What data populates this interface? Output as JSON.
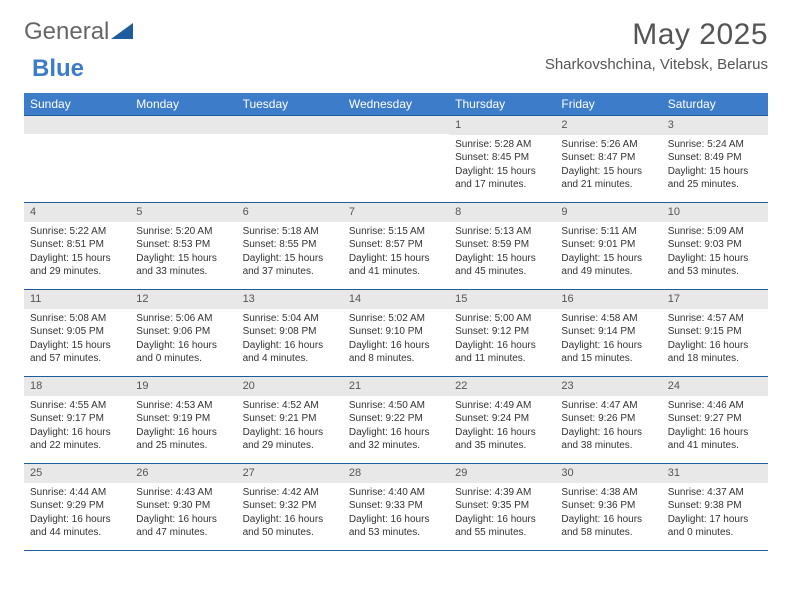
{
  "logo": {
    "text1": "General",
    "text2": "Blue"
  },
  "title": "May 2025",
  "location": "Sharkovshchina, Vitebsk, Belarus",
  "dow": [
    "Sunday",
    "Monday",
    "Tuesday",
    "Wednesday",
    "Thursday",
    "Friday",
    "Saturday"
  ],
  "colors": {
    "header_bg": "#3d7cc9",
    "border": "#1f5c9e",
    "daynum_bg": "#e8e8e8",
    "text": "#333333",
    "muted": "#555555",
    "page_bg": "#ffffff"
  },
  "weeks": [
    [
      {
        "n": "",
        "sr": "",
        "ss": "",
        "dl": ""
      },
      {
        "n": "",
        "sr": "",
        "ss": "",
        "dl": ""
      },
      {
        "n": "",
        "sr": "",
        "ss": "",
        "dl": ""
      },
      {
        "n": "",
        "sr": "",
        "ss": "",
        "dl": ""
      },
      {
        "n": "1",
        "sr": "Sunrise: 5:28 AM",
        "ss": "Sunset: 8:45 PM",
        "dl": "Daylight: 15 hours and 17 minutes."
      },
      {
        "n": "2",
        "sr": "Sunrise: 5:26 AM",
        "ss": "Sunset: 8:47 PM",
        "dl": "Daylight: 15 hours and 21 minutes."
      },
      {
        "n": "3",
        "sr": "Sunrise: 5:24 AM",
        "ss": "Sunset: 8:49 PM",
        "dl": "Daylight: 15 hours and 25 minutes."
      }
    ],
    [
      {
        "n": "4",
        "sr": "Sunrise: 5:22 AM",
        "ss": "Sunset: 8:51 PM",
        "dl": "Daylight: 15 hours and 29 minutes."
      },
      {
        "n": "5",
        "sr": "Sunrise: 5:20 AM",
        "ss": "Sunset: 8:53 PM",
        "dl": "Daylight: 15 hours and 33 minutes."
      },
      {
        "n": "6",
        "sr": "Sunrise: 5:18 AM",
        "ss": "Sunset: 8:55 PM",
        "dl": "Daylight: 15 hours and 37 minutes."
      },
      {
        "n": "7",
        "sr": "Sunrise: 5:15 AM",
        "ss": "Sunset: 8:57 PM",
        "dl": "Daylight: 15 hours and 41 minutes."
      },
      {
        "n": "8",
        "sr": "Sunrise: 5:13 AM",
        "ss": "Sunset: 8:59 PM",
        "dl": "Daylight: 15 hours and 45 minutes."
      },
      {
        "n": "9",
        "sr": "Sunrise: 5:11 AM",
        "ss": "Sunset: 9:01 PM",
        "dl": "Daylight: 15 hours and 49 minutes."
      },
      {
        "n": "10",
        "sr": "Sunrise: 5:09 AM",
        "ss": "Sunset: 9:03 PM",
        "dl": "Daylight: 15 hours and 53 minutes."
      }
    ],
    [
      {
        "n": "11",
        "sr": "Sunrise: 5:08 AM",
        "ss": "Sunset: 9:05 PM",
        "dl": "Daylight: 15 hours and 57 minutes."
      },
      {
        "n": "12",
        "sr": "Sunrise: 5:06 AM",
        "ss": "Sunset: 9:06 PM",
        "dl": "Daylight: 16 hours and 0 minutes."
      },
      {
        "n": "13",
        "sr": "Sunrise: 5:04 AM",
        "ss": "Sunset: 9:08 PM",
        "dl": "Daylight: 16 hours and 4 minutes."
      },
      {
        "n": "14",
        "sr": "Sunrise: 5:02 AM",
        "ss": "Sunset: 9:10 PM",
        "dl": "Daylight: 16 hours and 8 minutes."
      },
      {
        "n": "15",
        "sr": "Sunrise: 5:00 AM",
        "ss": "Sunset: 9:12 PM",
        "dl": "Daylight: 16 hours and 11 minutes."
      },
      {
        "n": "16",
        "sr": "Sunrise: 4:58 AM",
        "ss": "Sunset: 9:14 PM",
        "dl": "Daylight: 16 hours and 15 minutes."
      },
      {
        "n": "17",
        "sr": "Sunrise: 4:57 AM",
        "ss": "Sunset: 9:15 PM",
        "dl": "Daylight: 16 hours and 18 minutes."
      }
    ],
    [
      {
        "n": "18",
        "sr": "Sunrise: 4:55 AM",
        "ss": "Sunset: 9:17 PM",
        "dl": "Daylight: 16 hours and 22 minutes."
      },
      {
        "n": "19",
        "sr": "Sunrise: 4:53 AM",
        "ss": "Sunset: 9:19 PM",
        "dl": "Daylight: 16 hours and 25 minutes."
      },
      {
        "n": "20",
        "sr": "Sunrise: 4:52 AM",
        "ss": "Sunset: 9:21 PM",
        "dl": "Daylight: 16 hours and 29 minutes."
      },
      {
        "n": "21",
        "sr": "Sunrise: 4:50 AM",
        "ss": "Sunset: 9:22 PM",
        "dl": "Daylight: 16 hours and 32 minutes."
      },
      {
        "n": "22",
        "sr": "Sunrise: 4:49 AM",
        "ss": "Sunset: 9:24 PM",
        "dl": "Daylight: 16 hours and 35 minutes."
      },
      {
        "n": "23",
        "sr": "Sunrise: 4:47 AM",
        "ss": "Sunset: 9:26 PM",
        "dl": "Daylight: 16 hours and 38 minutes."
      },
      {
        "n": "24",
        "sr": "Sunrise: 4:46 AM",
        "ss": "Sunset: 9:27 PM",
        "dl": "Daylight: 16 hours and 41 minutes."
      }
    ],
    [
      {
        "n": "25",
        "sr": "Sunrise: 4:44 AM",
        "ss": "Sunset: 9:29 PM",
        "dl": "Daylight: 16 hours and 44 minutes."
      },
      {
        "n": "26",
        "sr": "Sunrise: 4:43 AM",
        "ss": "Sunset: 9:30 PM",
        "dl": "Daylight: 16 hours and 47 minutes."
      },
      {
        "n": "27",
        "sr": "Sunrise: 4:42 AM",
        "ss": "Sunset: 9:32 PM",
        "dl": "Daylight: 16 hours and 50 minutes."
      },
      {
        "n": "28",
        "sr": "Sunrise: 4:40 AM",
        "ss": "Sunset: 9:33 PM",
        "dl": "Daylight: 16 hours and 53 minutes."
      },
      {
        "n": "29",
        "sr": "Sunrise: 4:39 AM",
        "ss": "Sunset: 9:35 PM",
        "dl": "Daylight: 16 hours and 55 minutes."
      },
      {
        "n": "30",
        "sr": "Sunrise: 4:38 AM",
        "ss": "Sunset: 9:36 PM",
        "dl": "Daylight: 16 hours and 58 minutes."
      },
      {
        "n": "31",
        "sr": "Sunrise: 4:37 AM",
        "ss": "Sunset: 9:38 PM",
        "dl": "Daylight: 17 hours and 0 minutes."
      }
    ]
  ]
}
